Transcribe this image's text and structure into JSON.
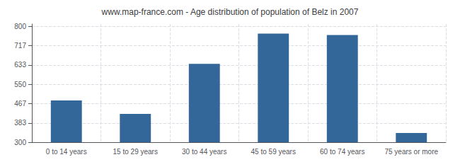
{
  "chart_data": {
    "type": "bar",
    "title": "www.map-france.com - Age distribution of population of Belz in 2007",
    "categories": [
      "0 to 14 years",
      "15 to 29 years",
      "30 to 44 years",
      "45 to 59 years",
      "60 to 74 years",
      "75 years or more"
    ],
    "values": [
      480,
      422,
      638,
      769,
      763,
      340
    ],
    "color": "#336699",
    "ylim": [
      300,
      810
    ],
    "yticks": [
      300,
      383,
      467,
      550,
      633,
      717,
      800
    ],
    "grid": true
  }
}
